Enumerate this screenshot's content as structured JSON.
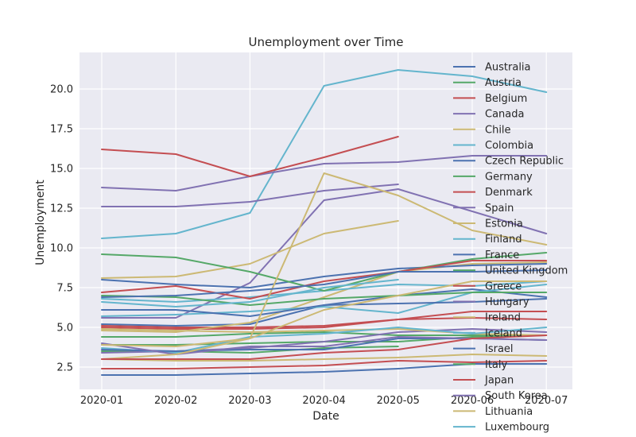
{
  "chart_data": {
    "type": "line",
    "title": "Unemployment over Time",
    "xlabel": "Date",
    "ylabel": "Unemployment",
    "x": [
      "2020-01",
      "2020-02",
      "2020-03",
      "2020-04",
      "2020-05",
      "2020-06",
      "2020-07"
    ],
    "ylim": [
      1.1,
      22.3
    ],
    "yticks": [
      2.5,
      5.0,
      7.5,
      10.0,
      12.5,
      15.0,
      17.5,
      20.0
    ],
    "ytick_labels": [
      "2.5",
      "5.0",
      "7.5",
      "10.0",
      "12.5",
      "15.0",
      "17.5",
      "20.0"
    ],
    "grid": true,
    "legend_position": "right",
    "background": "#eaeaf2",
    "series": [
      {
        "name": "Australia",
        "color": "#4c72b0",
        "values": [
          5.2,
          5.1,
          5.2,
          6.4,
          7.0,
          7.4,
          6.9
        ]
      },
      {
        "name": "Austria",
        "color": "#55a868",
        "values": [
          4.4,
          4.4,
          4.6,
          4.7,
          4.5,
          4.5,
          4.5
        ]
      },
      {
        "name": "Belgium",
        "color": "#c44e52",
        "values": [
          5.1,
          5.0,
          5.0,
          5.1,
          5.5,
          5.6,
          5.5
        ]
      },
      {
        "name": "Canada",
        "color": "#8172b2",
        "values": [
          5.6,
          5.6,
          7.8,
          13.0,
          13.7,
          12.3,
          10.9
        ]
      },
      {
        "name": "Chile",
        "color": "#ccb974",
        "values": [
          8.1,
          8.2,
          9.0,
          10.9,
          11.7,
          null,
          null
        ]
      },
      {
        "name": "Colombia",
        "color": "#64b5cd",
        "values": [
          10.6,
          10.9,
          12.2,
          20.2,
          21.2,
          20.8,
          19.8
        ]
      },
      {
        "name": "Czech Republic",
        "color": "#4c72b0",
        "values": [
          2.0,
          2.0,
          2.1,
          2.2,
          2.4,
          2.7,
          2.7
        ]
      },
      {
        "name": "Germany",
        "color": "#55a868",
        "values": [
          3.5,
          3.5,
          3.4,
          3.7,
          3.8,
          null,
          null
        ]
      },
      {
        "name": "Denmark",
        "color": "#c44e52",
        "values": [
          5.0,
          4.9,
          4.9,
          5.0,
          5.5,
          6.0,
          6.0
        ]
      },
      {
        "name": "Spain",
        "color": "#8172b2",
        "values": [
          13.8,
          13.6,
          14.5,
          15.3,
          15.4,
          15.8,
          15.8
        ]
      },
      {
        "name": "Estonia",
        "color": "#ccb974",
        "values": [
          4.8,
          4.7,
          5.3,
          6.9,
          8.5,
          9.0,
          9.1
        ]
      },
      {
        "name": "Finland",
        "color": "#64b5cd",
        "values": [
          6.8,
          6.6,
          6.9,
          7.3,
          7.7,
          7.6,
          7.9
        ]
      },
      {
        "name": "France",
        "color": "#4c72b0",
        "values": [
          8.0,
          7.7,
          7.5,
          8.2,
          8.7,
          8.9,
          9.0
        ]
      },
      {
        "name": "United Kingdom",
        "color": "#55a868",
        "values": [
          3.9,
          3.9,
          4.0,
          4.1,
          4.1,
          4.4,
          4.5
        ]
      },
      {
        "name": "Greece",
        "color": "#c44e52",
        "values": [
          16.2,
          15.9,
          14.5,
          15.7,
          17.0,
          null,
          null
        ]
      },
      {
        "name": "Hungary",
        "color": "#8172b2",
        "values": [
          3.4,
          3.5,
          3.7,
          4.1,
          4.7,
          4.9,
          4.7
        ]
      },
      {
        "name": "Ireland",
        "color": "#ccb974",
        "values": [
          4.9,
          4.8,
          4.7,
          4.8,
          4.9,
          4.6,
          4.5
        ]
      },
      {
        "name": "Iceland",
        "color": "#64b5cd",
        "values": [
          3.7,
          3.4,
          4.4,
          4.6,
          5.0,
          4.6,
          5.0
        ]
      },
      {
        "name": "Israel",
        "color": "#4c72b0",
        "values": [
          3.6,
          3.5,
          3.6,
          3.6,
          4.3,
          4.3,
          4.2
        ]
      },
      {
        "name": "Italy",
        "color": "#55a868",
        "values": [
          9.6,
          9.4,
          8.5,
          7.3,
          8.5,
          9.3,
          9.7
        ]
      },
      {
        "name": "Japan",
        "color": "#c44e52",
        "values": [
          2.4,
          2.4,
          2.5,
          2.6,
          2.9,
          2.8,
          2.9
        ]
      },
      {
        "name": "South Korea",
        "color": "#8172b2",
        "values": [
          4.0,
          3.3,
          3.8,
          3.8,
          4.4,
          4.3,
          4.2
        ]
      },
      {
        "name": "Lithuania",
        "color": "#ccb974",
        "values": [
          3.0,
          2.9,
          2.9,
          3.0,
          3.1,
          3.3,
          3.2
        ]
      },
      {
        "name": "Luxembourg",
        "color": "#64b5cd",
        "values": [
          5.7,
          5.8,
          6.0,
          6.3,
          5.9,
          7.2,
          7.7
        ]
      },
      {
        "name": "",
        "color": "#4c72b0",
        "values": [
          6.1,
          6.1,
          5.7,
          6.4,
          6.5,
          6.6,
          6.8
        ]
      },
      {
        "name": "",
        "color": "#55a868",
        "values": [
          7.0,
          6.9,
          6.4,
          6.8,
          7.0,
          7.2,
          7.2
        ]
      },
      {
        "name": "",
        "color": "#c44e52",
        "values": [
          7.2,
          7.6,
          6.8,
          7.9,
          8.5,
          9.2,
          9.2
        ]
      },
      {
        "name": "",
        "color": "#8172b2",
        "values": [
          12.6,
          12.6,
          12.9,
          13.6,
          14.0,
          null,
          null
        ]
      },
      {
        "name": "",
        "color": "#ccb974",
        "values": [
          3.0,
          3.3,
          4.3,
          14.7,
          13.3,
          11.1,
          10.2
        ]
      },
      {
        "name": "",
        "color": "#64b5cd",
        "values": [
          6.6,
          6.3,
          6.6,
          7.5,
          8.0,
          null,
          null
        ]
      },
      {
        "name": "",
        "color": "#4c72b0",
        "values": [
          6.9,
          7.0,
          7.3,
          7.7,
          8.5,
          8.5,
          8.6
        ]
      },
      {
        "name": "",
        "color": "#c44e52",
        "values": [
          3.0,
          3.0,
          3.0,
          3.4,
          3.6,
          4.3,
          4.5
        ]
      },
      {
        "name": "",
        "color": "#ccb974",
        "values": [
          3.9,
          3.8,
          4.3,
          6.1,
          7.0,
          7.9,
          7.9
        ]
      }
    ]
  }
}
